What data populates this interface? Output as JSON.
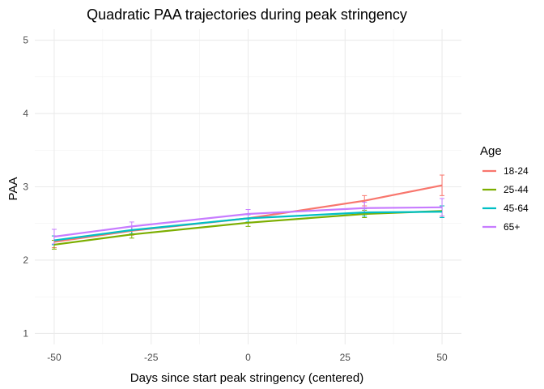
{
  "chart_data": {
    "type": "line",
    "title": "Quadratic PAA trajectories during peak stringency",
    "xlabel": "Days since start peak stringency (centered)",
    "ylabel": "PAA",
    "x": [
      -50,
      -30,
      0,
      30,
      50
    ],
    "xlim": [
      -55,
      55
    ],
    "ylim": [
      0.85,
      5.15
    ],
    "x_ticks": [
      -50,
      -25,
      0,
      25,
      50
    ],
    "x_tick_labels": [
      "-50",
      "-25",
      "0",
      "25",
      "50"
    ],
    "y_ticks": [
      1,
      2,
      3,
      4,
      5
    ],
    "y_tick_labels": [
      "1",
      "2",
      "3",
      "4",
      "5"
    ],
    "grid": true,
    "legend": {
      "title": "Age",
      "position": "right"
    },
    "series": [
      {
        "name": "18-24",
        "color": "#F8766D",
        "values": [
          2.25,
          2.4,
          2.57,
          2.81,
          3.02
        ],
        "lower": [
          2.17,
          2.34,
          2.51,
          2.74,
          2.88
        ],
        "upper": [
          2.33,
          2.46,
          2.63,
          2.88,
          3.16
        ]
      },
      {
        "name": "25-44",
        "color": "#7CAE00",
        "values": [
          2.21,
          2.35,
          2.51,
          2.63,
          2.67
        ],
        "lower": [
          2.15,
          2.3,
          2.46,
          2.58,
          2.6
        ],
        "upper": [
          2.27,
          2.4,
          2.56,
          2.68,
          2.74
        ]
      },
      {
        "name": "45-64",
        "color": "#00BFC4",
        "values": [
          2.27,
          2.41,
          2.57,
          2.65,
          2.66
        ],
        "lower": [
          2.21,
          2.36,
          2.52,
          2.6,
          2.58
        ],
        "upper": [
          2.33,
          2.46,
          2.62,
          2.7,
          2.74
        ]
      },
      {
        "name": "65+",
        "color": "#C77CFF",
        "values": [
          2.32,
          2.46,
          2.63,
          2.71,
          2.72
        ],
        "lower": [
          2.22,
          2.4,
          2.57,
          2.63,
          2.6
        ],
        "upper": [
          2.42,
          2.52,
          2.69,
          2.79,
          2.84
        ]
      }
    ]
  }
}
